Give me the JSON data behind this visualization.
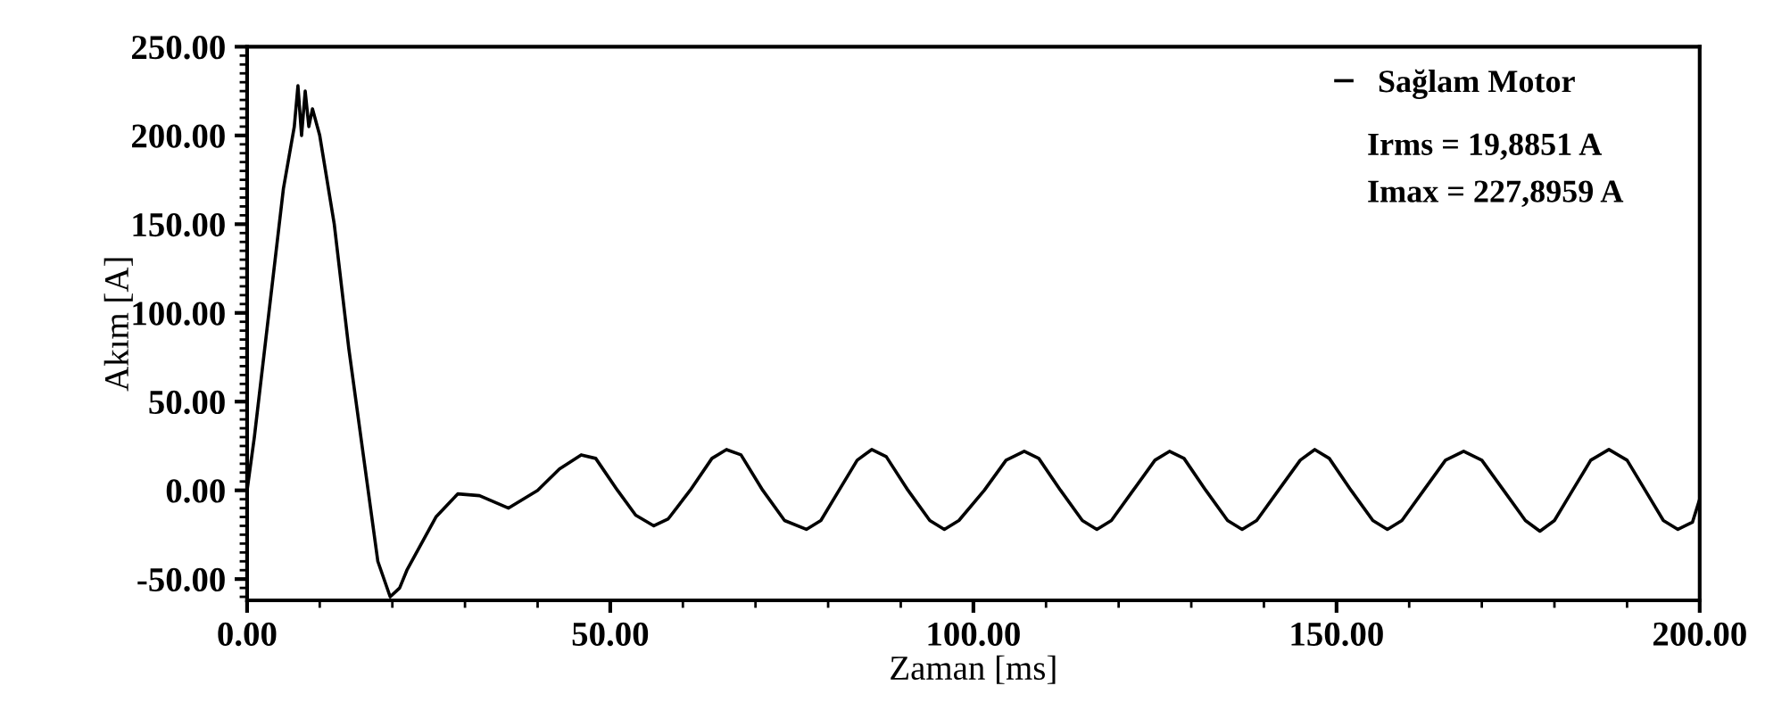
{
  "chart_data": {
    "type": "line",
    "xlabel": "Zaman [ms]",
    "ylabel": "Akım [A]",
    "xlim": [
      0,
      200
    ],
    "ylim": [
      -62,
      250
    ],
    "xticks": [
      {
        "value": 0,
        "label": "0.00"
      },
      {
        "value": 50,
        "label": "50.00"
      },
      {
        "value": 100,
        "label": "100.00"
      },
      {
        "value": 150,
        "label": "150.00"
      },
      {
        "value": 200,
        "label": "200.00"
      }
    ],
    "yticks": [
      {
        "value": -50,
        "label": "-50.00"
      },
      {
        "value": 0,
        "label": "0.00"
      },
      {
        "value": 50,
        "label": "50.00"
      },
      {
        "value": 100,
        "label": "100.00"
      },
      {
        "value": 150,
        "label": "150.00"
      },
      {
        "value": 200,
        "label": "200.00"
      },
      {
        "value": 250,
        "label": "250.00"
      }
    ],
    "grid": false,
    "legend": "top right",
    "marker": "none",
    "line_style": "solid",
    "annotations": [
      "Irms = 19,8851 A",
      "Imax = 227,8959 A"
    ],
    "series": [
      {
        "name": "Sağlam Motor",
        "color": "#000000",
        "x": [
          0,
          1,
          3,
          5,
          6.5,
          7,
          7.5,
          8,
          8.5,
          9,
          10,
          12,
          14,
          16,
          18,
          19.7,
          21,
          22,
          24,
          26,
          29,
          32,
          36,
          40,
          43,
          46,
          48,
          51,
          53.5,
          56,
          58,
          61,
          64,
          66,
          68,
          71,
          74,
          77,
          79,
          81.5,
          84,
          86,
          88,
          91,
          94,
          96,
          98,
          101.5,
          104.5,
          107,
          109,
          112,
          115,
          117,
          119,
          122,
          125,
          127,
          129,
          132,
          135,
          137,
          139,
          142,
          145,
          147,
          149,
          152,
          155,
          157,
          159,
          162,
          165,
          167.5,
          170,
          173,
          176,
          178,
          180,
          182.5,
          185,
          187.5,
          190,
          192.5,
          195,
          197,
          199,
          200
        ],
        "values": [
          0,
          30,
          100,
          170,
          205,
          228,
          200,
          225,
          205,
          215,
          200,
          150,
          80,
          20,
          -40,
          -60,
          -55,
          -45,
          -30,
          -15,
          -2,
          -3,
          -10,
          0,
          12,
          20,
          18,
          0,
          -14,
          -20,
          -16,
          0,
          18,
          23,
          20,
          0,
          -17,
          -22,
          -17,
          0,
          17,
          23,
          19,
          0,
          -17,
          -22,
          -17,
          0,
          17,
          22,
          18,
          0,
          -17,
          -22,
          -17,
          0,
          17,
          22,
          18,
          0,
          -17,
          -22,
          -17,
          0,
          17,
          23,
          18,
          0,
          -17,
          -22,
          -17,
          0,
          17,
          22,
          17,
          0,
          -17,
          -23,
          -17,
          0,
          17,
          23,
          17,
          0,
          -17,
          -22,
          -18,
          -5
        ]
      }
    ]
  }
}
